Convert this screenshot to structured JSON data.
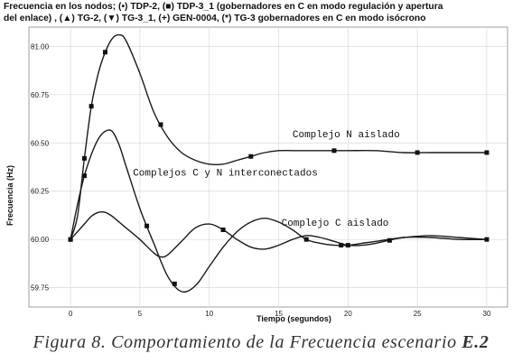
{
  "chart_data": {
    "type": "line",
    "title_lines": [
      "Frecuencia en los nodos; (•) TDP-2, (■) TDP-3_1 (gobernadores en C en modo regulación y apertura",
      "del enlace) , (▲) TG-2, (▼) TG-3_1, (+) GEN-0004, (*) TG-3 gobernadores en C en modo isócrono"
    ],
    "xlabel": "Tiempo (segundos)",
    "ylabel": "Frecuencia (Hz)",
    "xlim": [
      -3,
      31.5
    ],
    "ylim": [
      59.65,
      81.1
    ],
    "y_ticks": [
      "59.75",
      "60.00",
      "60.25",
      "60.50",
      "60.75",
      "81.00"
    ],
    "y_tick_values": [
      59.75,
      60.0,
      60.25,
      60.5,
      60.75,
      81.0
    ],
    "x_ticks": [
      "0",
      "5",
      "10",
      "15",
      "20",
      "25",
      "30"
    ],
    "x_tick_values": [
      0,
      5,
      10,
      15,
      20,
      25,
      30
    ],
    "grid": true,
    "annotations": [
      {
        "text": "Complejo N aislado",
        "x": 16,
        "y": 60.53
      },
      {
        "text": "Complejos C y N interconectados",
        "x": 4.5,
        "y": 60.33
      },
      {
        "text": "Complejo C aislado",
        "x": 15.2,
        "y": 60.07
      }
    ],
    "series": [
      {
        "x": [
          0,
          0.5,
          1,
          1.5,
          2,
          2.5,
          3,
          3.5,
          4,
          5,
          6,
          7,
          8,
          9,
          10,
          11,
          12,
          13,
          14,
          15,
          16,
          17,
          18,
          19,
          20,
          22,
          24,
          26,
          28,
          30
        ],
        "y": [
          60.0,
          60.12,
          60.42,
          60.69,
          60.86,
          60.97,
          81.04,
          81.06,
          81.03,
          60.86,
          60.66,
          60.53,
          60.45,
          60.41,
          60.39,
          60.39,
          60.41,
          60.43,
          60.45,
          60.46,
          60.46,
          60.46,
          60.46,
          60.46,
          60.46,
          60.46,
          60.45,
          60.45,
          60.45,
          60.45
        ],
        "marker_x": [
          0,
          1,
          1.5,
          2.5,
          6.5,
          13,
          19,
          25,
          30
        ]
      },
      {
        "x": [
          0,
          0.5,
          1,
          1.5,
          2,
          2.5,
          3,
          3.5,
          4,
          5,
          6,
          7,
          8,
          9,
          10,
          11,
          12,
          13,
          14,
          15,
          16,
          17,
          18,
          19,
          20,
          21,
          22,
          24,
          26,
          28,
          30
        ],
        "y": [
          60.0,
          60.18,
          60.33,
          60.44,
          60.52,
          60.56,
          60.56,
          60.49,
          60.38,
          60.16,
          59.98,
          59.81,
          59.73,
          59.76,
          59.86,
          59.96,
          60.04,
          60.09,
          60.11,
          60.09,
          60.05,
          60.0,
          59.98,
          59.97,
          59.97,
          59.98,
          59.99,
          60.01,
          60.02,
          60.01,
          60.0
        ],
        "marker_x": [
          0,
          1,
          5.5,
          7.5,
          17,
          19.5
        ]
      },
      {
        "x": [
          0,
          0.5,
          1,
          1.5,
          2,
          2.5,
          3,
          3.5,
          4,
          5,
          6,
          6.5,
          7,
          8,
          9,
          10,
          11,
          12,
          13,
          14,
          15,
          16,
          17,
          18,
          19,
          20,
          21,
          22,
          24,
          26,
          28,
          30
        ],
        "y": [
          60.0,
          60.04,
          60.08,
          60.12,
          60.14,
          60.14,
          60.12,
          60.09,
          60.06,
          60.0,
          59.93,
          59.91,
          59.92,
          59.99,
          60.06,
          60.08,
          60.05,
          60.0,
          59.96,
          59.95,
          59.97,
          60.0,
          60.02,
          60.01,
          59.99,
          59.97,
          59.97,
          59.98,
          60.01,
          60.01,
          60.0,
          60.0
        ],
        "marker_x": [
          11,
          20,
          23,
          30
        ]
      }
    ]
  },
  "caption": {
    "prefix": "Figura 8. Comportamiento de la Frecuencia escenario ",
    "bold": "E.2"
  }
}
